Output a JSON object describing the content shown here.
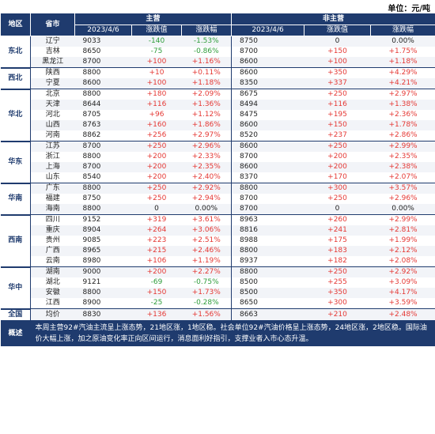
{
  "unit_label": "单位：元/吨",
  "headers": {
    "region": "地区",
    "province": "省市",
    "main_group": "主营",
    "nonmain_group": "非主营",
    "date": "2023/4/6",
    "change": "涨跌值",
    "pct": "涨跌幅"
  },
  "colors": {
    "header": "#1f3b6e",
    "up": "#e53935",
    "down": "#2e9d3a"
  },
  "regions": [
    {
      "name": "东北",
      "rows": [
        {
          "province": "辽宁",
          "main": "9033",
          "main_chg": "-140",
          "main_pct": "-1.53%",
          "non": "8750",
          "non_chg": "0",
          "non_pct": "0.00%"
        },
        {
          "province": "吉林",
          "main": "8650",
          "main_chg": "-75",
          "main_pct": "-0.86%",
          "non": "8700",
          "non_chg": "+150",
          "non_pct": "+1.75%"
        },
        {
          "province": "黑龙江",
          "main": "8700",
          "main_chg": "+100",
          "main_pct": "+1.16%",
          "non": "8600",
          "non_chg": "+100",
          "non_pct": "+1.18%"
        }
      ]
    },
    {
      "name": "西北",
      "rows": [
        {
          "province": "陕西",
          "main": "8800",
          "main_chg": "+10",
          "main_pct": "+0.11%",
          "non": "8600",
          "non_chg": "+350",
          "non_pct": "+4.29%"
        },
        {
          "province": "宁夏",
          "main": "8600",
          "main_chg": "+100",
          "main_pct": "+1.18%",
          "non": "8350",
          "non_chg": "+337",
          "non_pct": "+4.21%"
        }
      ]
    },
    {
      "name": "华北",
      "rows": [
        {
          "province": "北京",
          "main": "8800",
          "main_chg": "+180",
          "main_pct": "+2.09%",
          "non": "8675",
          "non_chg": "+250",
          "non_pct": "+2.97%"
        },
        {
          "province": "天津",
          "main": "8644",
          "main_chg": "+116",
          "main_pct": "+1.36%",
          "non": "8494",
          "non_chg": "+116",
          "non_pct": "+1.38%"
        },
        {
          "province": "河北",
          "main": "8705",
          "main_chg": "+96",
          "main_pct": "+1.12%",
          "non": "8475",
          "non_chg": "+195",
          "non_pct": "+2.36%"
        },
        {
          "province": "山西",
          "main": "8763",
          "main_chg": "+160",
          "main_pct": "+1.86%",
          "non": "8600",
          "non_chg": "+150",
          "non_pct": "+1.78%"
        },
        {
          "province": "河南",
          "main": "8862",
          "main_chg": "+256",
          "main_pct": "+2.97%",
          "non": "8520",
          "non_chg": "+237",
          "non_pct": "+2.86%"
        }
      ]
    },
    {
      "name": "华东",
      "rows": [
        {
          "province": "江苏",
          "main": "8700",
          "main_chg": "+250",
          "main_pct": "+2.96%",
          "non": "8600",
          "non_chg": "+250",
          "non_pct": "+2.99%"
        },
        {
          "province": "浙江",
          "main": "8800",
          "main_chg": "+200",
          "main_pct": "+2.33%",
          "non": "8700",
          "non_chg": "+200",
          "non_pct": "+2.35%"
        },
        {
          "province": "上海",
          "main": "8700",
          "main_chg": "+200",
          "main_pct": "+2.35%",
          "non": "8600",
          "non_chg": "+200",
          "non_pct": "+2.38%"
        },
        {
          "province": "山东",
          "main": "8540",
          "main_chg": "+200",
          "main_pct": "+2.40%",
          "non": "8370",
          "non_chg": "+170",
          "non_pct": "+2.07%"
        }
      ]
    },
    {
      "name": "华南",
      "rows": [
        {
          "province": "广东",
          "main": "8800",
          "main_chg": "+250",
          "main_pct": "+2.92%",
          "non": "8800",
          "non_chg": "+300",
          "non_pct": "+3.57%"
        },
        {
          "province": "福建",
          "main": "8750",
          "main_chg": "+250",
          "main_pct": "+2.94%",
          "non": "8700",
          "non_chg": "+250",
          "non_pct": "+2.96%"
        },
        {
          "province": "海南",
          "main": "8800",
          "main_chg": "0",
          "main_pct": "0.00%",
          "non": "8700",
          "non_chg": "0",
          "non_pct": "0.00%"
        }
      ]
    },
    {
      "name": "西南",
      "rows": [
        {
          "province": "四川",
          "main": "9152",
          "main_chg": "+319",
          "main_pct": "+3.61%",
          "non": "8963",
          "non_chg": "+260",
          "non_pct": "+2.99%"
        },
        {
          "province": "重庆",
          "main": "8904",
          "main_chg": "+264",
          "main_pct": "+3.06%",
          "non": "8816",
          "non_chg": "+241",
          "non_pct": "+2.81%"
        },
        {
          "province": "贵州",
          "main": "9085",
          "main_chg": "+223",
          "main_pct": "+2.51%",
          "non": "8988",
          "non_chg": "+175",
          "non_pct": "+1.99%"
        },
        {
          "province": "广西",
          "main": "8965",
          "main_chg": "+215",
          "main_pct": "+2.46%",
          "non": "8800",
          "non_chg": "+183",
          "non_pct": "+2.12%"
        },
        {
          "province": "云南",
          "main": "8980",
          "main_chg": "+106",
          "main_pct": "+1.19%",
          "non": "8937",
          "non_chg": "+182",
          "non_pct": "+2.08%"
        }
      ]
    },
    {
      "name": "华中",
      "rows": [
        {
          "province": "湖南",
          "main": "9000",
          "main_chg": "+200",
          "main_pct": "+2.27%",
          "non": "8800",
          "non_chg": "+250",
          "non_pct": "+2.92%"
        },
        {
          "province": "湖北",
          "main": "9121",
          "main_chg": "-69",
          "main_pct": "-0.75%",
          "non": "8500",
          "non_chg": "+255",
          "non_pct": "+3.09%"
        },
        {
          "province": "安徽",
          "main": "8800",
          "main_chg": "+150",
          "main_pct": "+1.73%",
          "non": "8500",
          "non_chg": "+350",
          "non_pct": "+4.17%"
        },
        {
          "province": "江西",
          "main": "8900",
          "main_chg": "-25",
          "main_pct": "-0.28%",
          "non": "8650",
          "non_chg": "+300",
          "non_pct": "+3.59%"
        }
      ]
    },
    {
      "name": "全国",
      "rows": [
        {
          "province": "均价",
          "main": "8830",
          "main_chg": "+136",
          "main_pct": "+1.56%",
          "non": "8663",
          "non_chg": "+210",
          "non_pct": "+2.48%"
        }
      ]
    }
  ],
  "summary": {
    "label": "概述",
    "text": "本周主营92#汽油主流呈上涨态势，21地区涨，1地区稳。社会单位92#汽油价格呈上涨态势，24地区涨，2地区稳。国际油价大幅上涨，加之原油变化率正向区间运行，消息面利好指引，支撑业者入市心态升温。"
  }
}
